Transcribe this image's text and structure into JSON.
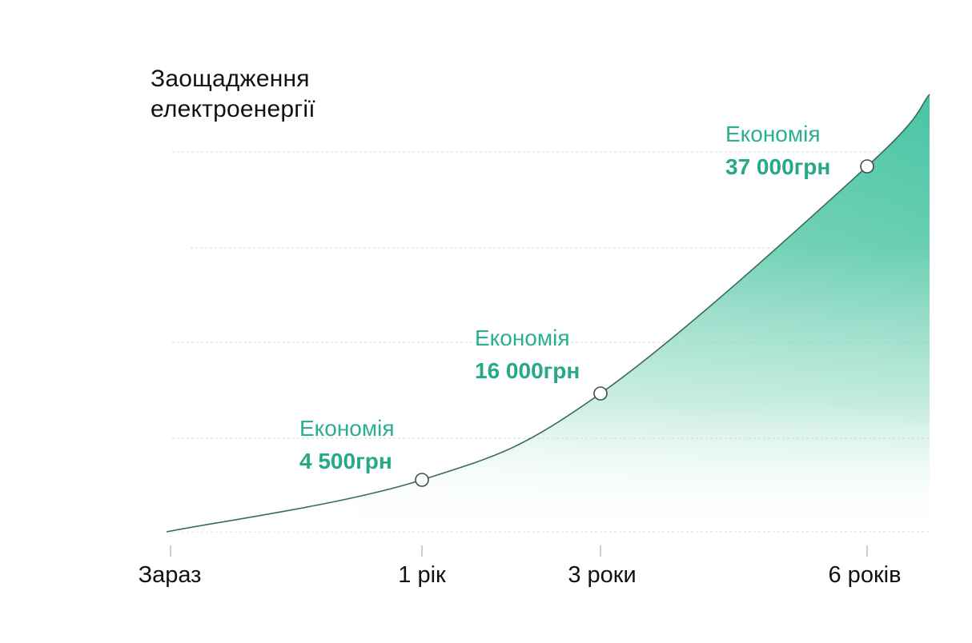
{
  "chart_data": {
    "type": "area",
    "title_lines": [
      "Заощадження",
      "електроенергії"
    ],
    "categories": [
      "Зараз",
      "1 рік",
      "3 роки",
      "6 років"
    ],
    "x": [
      0,
      1,
      3,
      6
    ],
    "values": [
      0,
      4500,
      16000,
      37000
    ],
    "callout_label": "Економія",
    "annotations": [
      {
        "label": "Економія",
        "value_text": "4 500грн",
        "category": "1 рік",
        "value": 4500
      },
      {
        "label": "Економія",
        "value_text": "16 000грн",
        "category": "3 роки",
        "value": 16000
      },
      {
        "label": "Економія",
        "value_text": "37 000грн",
        "category": "6 років",
        "value": 37000
      }
    ],
    "grid": true,
    "legend": "none",
    "colors": {
      "fill": "#48c5a4",
      "line": "#3a6b5a",
      "accent_text": "#2bb08f",
      "grid": "#d6d6d6"
    }
  }
}
